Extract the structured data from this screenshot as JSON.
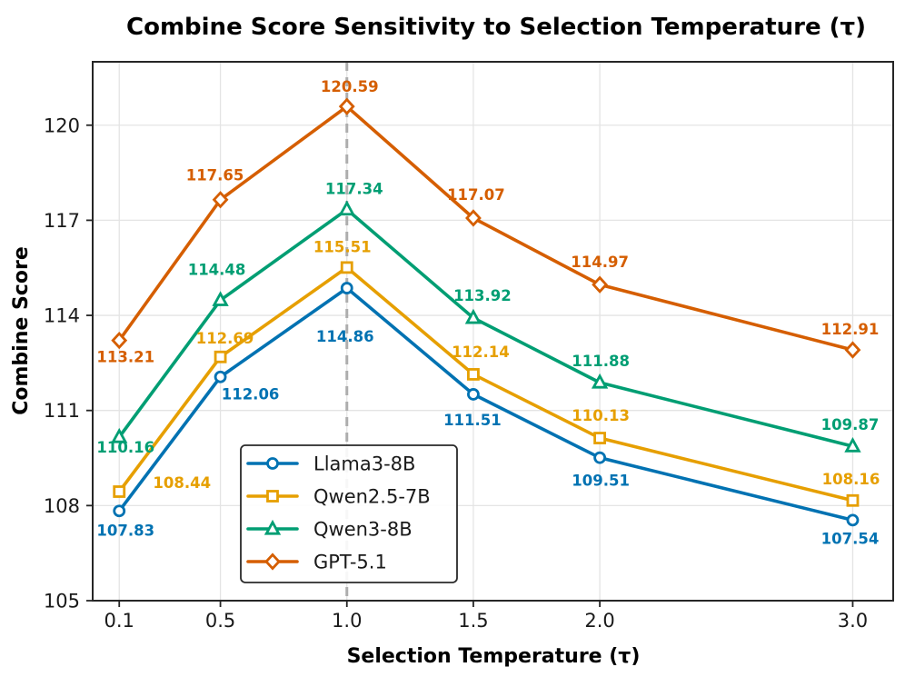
{
  "chart_data": {
    "type": "line",
    "title": "Combine Score Sensitivity to Selection Temperature (τ)",
    "xlabel": "Selection Temperature (τ)",
    "ylabel": "Combine Score",
    "x": [
      0.1,
      0.5,
      1.0,
      1.5,
      2.0,
      3.0
    ],
    "x_tick_labels": [
      "0.1",
      "0.5",
      "1.0",
      "1.5",
      "2.0",
      "3.0"
    ],
    "y_ticks": [
      105,
      108,
      111,
      114,
      117,
      120
    ],
    "xlim": [
      -0.005,
      3.16
    ],
    "ylim": [
      105,
      122
    ],
    "grid": true,
    "grid_color": "#e4e4e4",
    "spine_color": "#262626",
    "reference_vline": {
      "x": 1.0,
      "style": "dashed",
      "color": "#adadad"
    },
    "legend_position": "lower-left-inside",
    "series": [
      {
        "name": "Llama3-8B",
        "color": "#0072B2",
        "marker": "circle",
        "values": [
          107.83,
          112.06,
          114.86,
          111.51,
          109.51,
          107.54
        ],
        "label_offsets": [
          [
            7,
            27
          ],
          [
            33,
            25
          ],
          [
            -2,
            59
          ],
          [
            -1,
            34
          ],
          [
            1,
            31
          ],
          [
            -3,
            26
          ]
        ]
      },
      {
        "name": "Qwen2.5-7B",
        "color": "#E69F00",
        "marker": "square",
        "values": [
          108.44,
          112.69,
          115.51,
          112.14,
          110.13,
          108.16
        ],
        "label_offsets": [
          [
            69,
            -4
          ],
          [
            5,
            -15
          ],
          [
            -5,
            -17
          ],
          [
            8,
            -19
          ],
          [
            1,
            -19
          ],
          [
            -2,
            -18
          ]
        ]
      },
      {
        "name": "Qwen3-8B",
        "color": "#009E73",
        "marker": "triangle",
        "values": [
          110.16,
          114.48,
          117.34,
          113.92,
          111.88,
          109.87
        ],
        "label_offsets": [
          [
            7,
            17
          ],
          [
            -4,
            -28
          ],
          [
            8,
            -17
          ],
          [
            10,
            -19
          ],
          [
            1,
            -18
          ],
          [
            -3,
            -18
          ]
        ]
      },
      {
        "name": "GPT-5.1",
        "color": "#D55E00",
        "marker": "diamond",
        "values": [
          113.21,
          117.65,
          120.59,
          117.07,
          114.97,
          112.91
        ],
        "label_offsets": [
          [
            7,
            24
          ],
          [
            -6,
            -21
          ],
          [
            3,
            -16
          ],
          [
            3,
            -20
          ],
          [
            0,
            -19
          ],
          [
            -3,
            -17
          ]
        ]
      }
    ]
  }
}
